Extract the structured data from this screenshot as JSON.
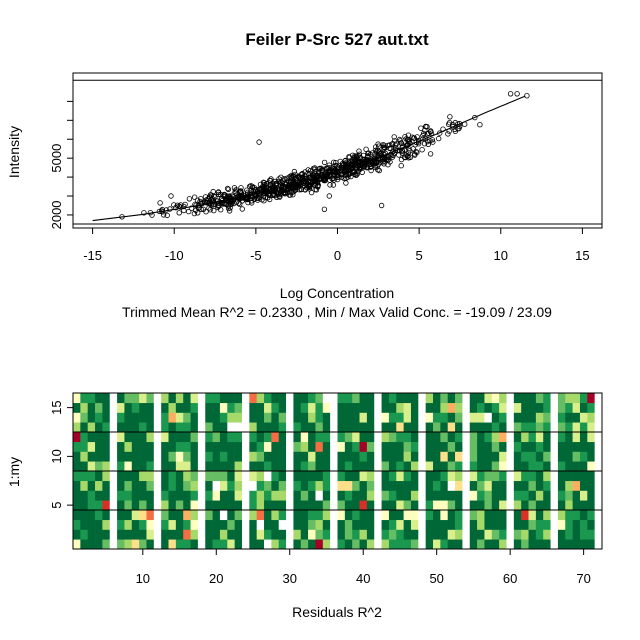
{
  "chart_data": [
    {
      "type": "scatter",
      "title": "Feiler P-Src 527 aut.txt",
      "xlabel": "Log Concentration",
      "ylabel": "Intensity",
      "subtitle": "Trimmed Mean R^2 = 0.2330 , Min / Max Valid Conc. = -19.09 / 23.09",
      "xlim": [
        -16.2,
        16.2
      ],
      "ylim": [
        1310,
        9500
      ],
      "xticks": [
        "-15",
        "-10",
        "-5",
        "0",
        "5",
        "10",
        "15"
      ],
      "yticks": [
        "2000",
        "5000"
      ],
      "hlines": [
        1520,
        9120
      ],
      "fit": {
        "x": [
          -15,
          -12,
          -9,
          -6,
          -3,
          0,
          3,
          6,
          9,
          11.5
        ],
        "y": [
          1700,
          2020,
          2430,
          2920,
          3550,
          4300,
          5200,
          6250,
          7380,
          8280
        ]
      },
      "scatter": {
        "n": 900,
        "x_range": [
          -15.2,
          11.6
        ],
        "spread_y": 470,
        "outliers": [
          {
            "x": -4.8,
            "y": 5850
          },
          {
            "x": -10.2,
            "y": 3000
          },
          {
            "x": 2.7,
            "y": 2500
          },
          {
            "x": -0.8,
            "y": 2300
          },
          {
            "x": 10.6,
            "y": 8400
          },
          {
            "x": 11.0,
            "y": 8400
          },
          {
            "x": 11.6,
            "y": 8300
          },
          {
            "x": -13.2,
            "y": 1900
          },
          {
            "x": -0.5,
            "y": 3000
          },
          {
            "x": 3.9,
            "y": 4600
          }
        ]
      }
    },
    {
      "type": "heatmap",
      "xlabel": "Residuals R^2",
      "ylabel": "1:my",
      "xlim": [
        0.5,
        72.5
      ],
      "ylim": [
        0.5,
        16.5
      ],
      "xticks": [
        "10",
        "20",
        "30",
        "40",
        "50",
        "60",
        "70"
      ],
      "yticks": [
        "5",
        "10",
        "15"
      ],
      "n_cols": 72,
      "n_rows": 16,
      "blank_columns": [
        6,
        12,
        18,
        24,
        30,
        36,
        42,
        48,
        54,
        60,
        66,
        72
      ],
      "row_separators": [
        4.5,
        8.5,
        12.5
      ],
      "palette": [
        "#006837",
        "#1a9850",
        "#66bd63",
        "#a6d96a",
        "#d9ef8b",
        "#ffffbf",
        "#fee08b",
        "#fdae61",
        "#f46d43",
        "#d73027",
        "#a50026"
      ],
      "dominant_color": "#006837"
    }
  ]
}
